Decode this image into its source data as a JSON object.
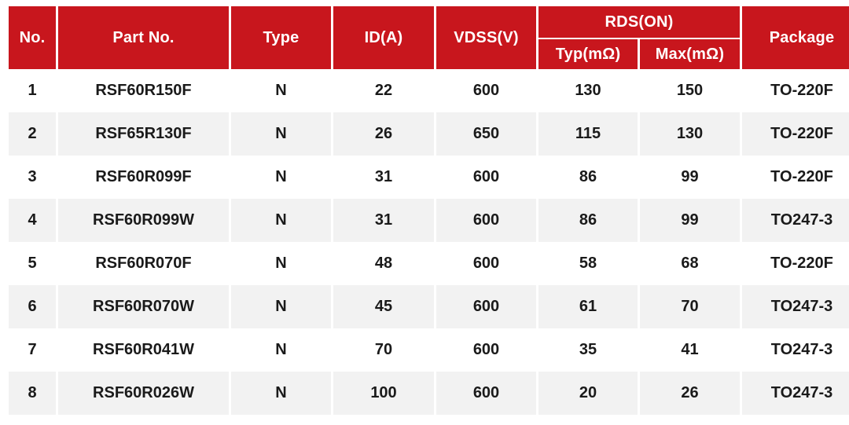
{
  "colors": {
    "header_bg": "#C8161D",
    "header_text": "#FFFFFF",
    "row_bg": "#FFFFFF",
    "row_alt_bg": "#F2F2F2",
    "body_text": "#1A1A1A",
    "grid_gap": "#FFFFFF"
  },
  "chart_data": {
    "type": "table",
    "title": "",
    "column_groups": [
      {
        "label": "RDS(ON)",
        "covers": [
          "Typ(mΩ)",
          "Max(mΩ)"
        ]
      }
    ],
    "columns": [
      "No.",
      "Part No.",
      "Type",
      "ID(A)",
      "VDSS(V)",
      "Typ(mΩ)",
      "Max(mΩ)",
      "Package"
    ],
    "rows": [
      [
        "1",
        "RSF60R150F",
        "N",
        "22",
        "600",
        "130",
        "150",
        "TO-220F"
      ],
      [
        "2",
        "RSF65R130F",
        "N",
        "26",
        "650",
        "115",
        "130",
        "TO-220F"
      ],
      [
        "3",
        "RSF60R099F",
        "N",
        "31",
        "600",
        "86",
        "99",
        "TO-220F"
      ],
      [
        "4",
        "RSF60R099W",
        "N",
        "31",
        "600",
        "86",
        "99",
        "TO247-3"
      ],
      [
        "5",
        "RSF60R070F",
        "N",
        "48",
        "600",
        "58",
        "68",
        "TO-220F"
      ],
      [
        "6",
        "RSF60R070W",
        "N",
        "45",
        "600",
        "61",
        "70",
        "TO247-3"
      ],
      [
        "7",
        "RSF60R041W",
        "N",
        "70",
        "600",
        "35",
        "41",
        "TO247-3"
      ],
      [
        "8",
        "RSF60R026W",
        "N",
        "100",
        "600",
        "20",
        "26",
        "TO247-3"
      ]
    ]
  }
}
